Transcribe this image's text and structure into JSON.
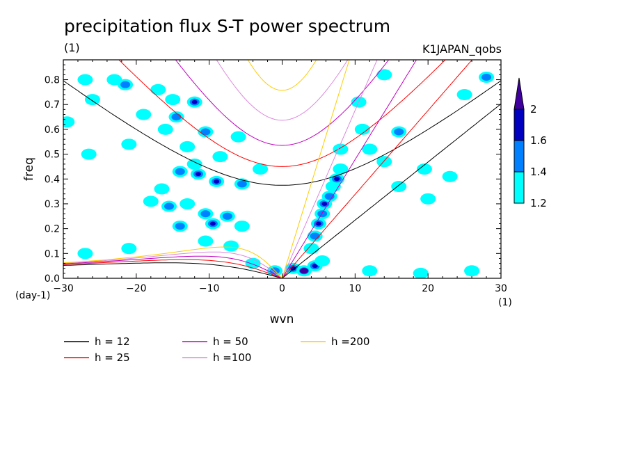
{
  "chart_data": {
    "type": "contour",
    "title": "precipitation flux S-T power spectrum",
    "subtitle_left": "(1)",
    "subtitle_right": "K1JAPAN_qobs",
    "xlabel": "wvn",
    "ylabel": "freq",
    "x_unit": "(1)",
    "y_unit": "(day-1)",
    "xlim": [
      -30,
      30
    ],
    "ylim": [
      0,
      0.88
    ],
    "x_ticks": [
      -30,
      -20,
      -10,
      0,
      10,
      20,
      30
    ],
    "y_ticks": [
      0.0,
      0.1,
      0.2,
      0.3,
      0.4,
      0.5,
      0.6,
      0.7,
      0.8
    ],
    "x_tick_labels": [
      "−30",
      "−20",
      "−10",
      "0",
      "10",
      "20",
      "30"
    ],
    "y_tick_labels": [
      "0.0",
      "0.1",
      "0.2",
      "0.3",
      "0.4",
      "0.5",
      "0.6",
      "0.7",
      "0.8"
    ],
    "colorbar": {
      "levels": [
        "1.2",
        "1.4",
        "1.6",
        "2"
      ],
      "colors": [
        "#00ffff",
        "#0080ff",
        "#0000c0",
        "#4000a0"
      ]
    },
    "series": [
      {
        "name": "h = 12",
        "h": 12,
        "color": "#000000"
      },
      {
        "name": "h = 25",
        "h": 25,
        "color": "#ff0000"
      },
      {
        "name": "h = 50",
        "h": 50,
        "color": "#c000c0"
      },
      {
        "name": "h =100",
        "h": 100,
        "color": "#dd88dd"
      },
      {
        "name": "h =200",
        "h": 200,
        "color": "#ffcc00"
      }
    ],
    "blobs": [
      {
        "x": -29.5,
        "y": 0.63,
        "level": 1
      },
      {
        "x": -27,
        "y": 0.8,
        "level": 1
      },
      {
        "x": -23,
        "y": 0.8,
        "level": 1
      },
      {
        "x": -21.5,
        "y": 0.78,
        "level": 2
      },
      {
        "x": -17,
        "y": 0.76,
        "level": 1
      },
      {
        "x": -15,
        "y": 0.72,
        "level": 1
      },
      {
        "x": -12,
        "y": 0.71,
        "level": 3
      },
      {
        "x": -14.5,
        "y": 0.65,
        "level": 2
      },
      {
        "x": -16,
        "y": 0.6,
        "level": 1
      },
      {
        "x": -10.5,
        "y": 0.59,
        "level": 2
      },
      {
        "x": -13,
        "y": 0.53,
        "level": 1
      },
      {
        "x": -12,
        "y": 0.46,
        "level": 1
      },
      {
        "x": -8.5,
        "y": 0.49,
        "level": 1
      },
      {
        "x": -14,
        "y": 0.43,
        "level": 2
      },
      {
        "x": -11.5,
        "y": 0.42,
        "level": 3
      },
      {
        "x": -9,
        "y": 0.39,
        "level": 3
      },
      {
        "x": -5.5,
        "y": 0.38,
        "level": 2
      },
      {
        "x": -3,
        "y": 0.44,
        "level": 1
      },
      {
        "x": -16.5,
        "y": 0.36,
        "level": 1
      },
      {
        "x": -18,
        "y": 0.31,
        "level": 1
      },
      {
        "x": -15.5,
        "y": 0.29,
        "level": 2
      },
      {
        "x": -13,
        "y": 0.3,
        "level": 1
      },
      {
        "x": -10.5,
        "y": 0.26,
        "level": 2
      },
      {
        "x": -9.5,
        "y": 0.22,
        "level": 3
      },
      {
        "x": -7.5,
        "y": 0.25,
        "level": 2
      },
      {
        "x": -5.5,
        "y": 0.21,
        "level": 1
      },
      {
        "x": -14,
        "y": 0.21,
        "level": 2
      },
      {
        "x": -10.5,
        "y": 0.15,
        "level": 1
      },
      {
        "x": -7,
        "y": 0.13,
        "level": 1
      },
      {
        "x": -4,
        "y": 0.06,
        "level": 1
      },
      {
        "x": -27,
        "y": 0.1,
        "level": 1
      },
      {
        "x": -21,
        "y": 0.12,
        "level": 1
      },
      {
        "x": -6,
        "y": 0.57,
        "level": 1
      },
      {
        "x": -19,
        "y": 0.66,
        "level": 1
      },
      {
        "x": -21,
        "y": 0.54,
        "level": 1
      },
      {
        "x": -26.5,
        "y": 0.5,
        "level": 1
      },
      {
        "x": -1,
        "y": 0.03,
        "level": 2
      },
      {
        "x": 1.5,
        "y": 0.04,
        "level": 3
      },
      {
        "x": 3,
        "y": 0.03,
        "level": 4
      },
      {
        "x": 4.5,
        "y": 0.05,
        "level": 3
      },
      {
        "x": 5.5,
        "y": 0.07,
        "level": 1
      },
      {
        "x": 4,
        "y": 0.12,
        "level": 1
      },
      {
        "x": 4.5,
        "y": 0.17,
        "level": 2
      },
      {
        "x": 5,
        "y": 0.22,
        "level": 3
      },
      {
        "x": 5.5,
        "y": 0.26,
        "level": 2
      },
      {
        "x": 5.8,
        "y": 0.3,
        "level": 3
      },
      {
        "x": 6.5,
        "y": 0.33,
        "level": 2
      },
      {
        "x": 7,
        "y": 0.37,
        "level": 1
      },
      {
        "x": 7.5,
        "y": 0.4,
        "level": 3
      },
      {
        "x": 8,
        "y": 0.44,
        "level": 1
      },
      {
        "x": 8,
        "y": 0.52,
        "level": 1
      },
      {
        "x": 10.5,
        "y": 0.71,
        "level": 1
      },
      {
        "x": 11,
        "y": 0.6,
        "level": 1
      },
      {
        "x": 16,
        "y": 0.59,
        "level": 2
      },
      {
        "x": 12,
        "y": 0.52,
        "level": 1
      },
      {
        "x": 14,
        "y": 0.47,
        "level": 1
      },
      {
        "x": 16,
        "y": 0.37,
        "level": 1
      },
      {
        "x": 19.5,
        "y": 0.44,
        "level": 1
      },
      {
        "x": 23,
        "y": 0.41,
        "level": 1
      },
      {
        "x": 20,
        "y": 0.32,
        "level": 1
      },
      {
        "x": 28,
        "y": 0.81,
        "level": 2
      },
      {
        "x": 25,
        "y": 0.74,
        "level": 1
      },
      {
        "x": 14,
        "y": 0.82,
        "level": 1
      },
      {
        "x": 19,
        "y": 0.02,
        "level": 1
      },
      {
        "x": 26,
        "y": 0.03,
        "level": 1
      },
      {
        "x": 12,
        "y": 0.03,
        "level": 1
      },
      {
        "x": -26,
        "y": 0.72,
        "level": 1
      }
    ]
  }
}
